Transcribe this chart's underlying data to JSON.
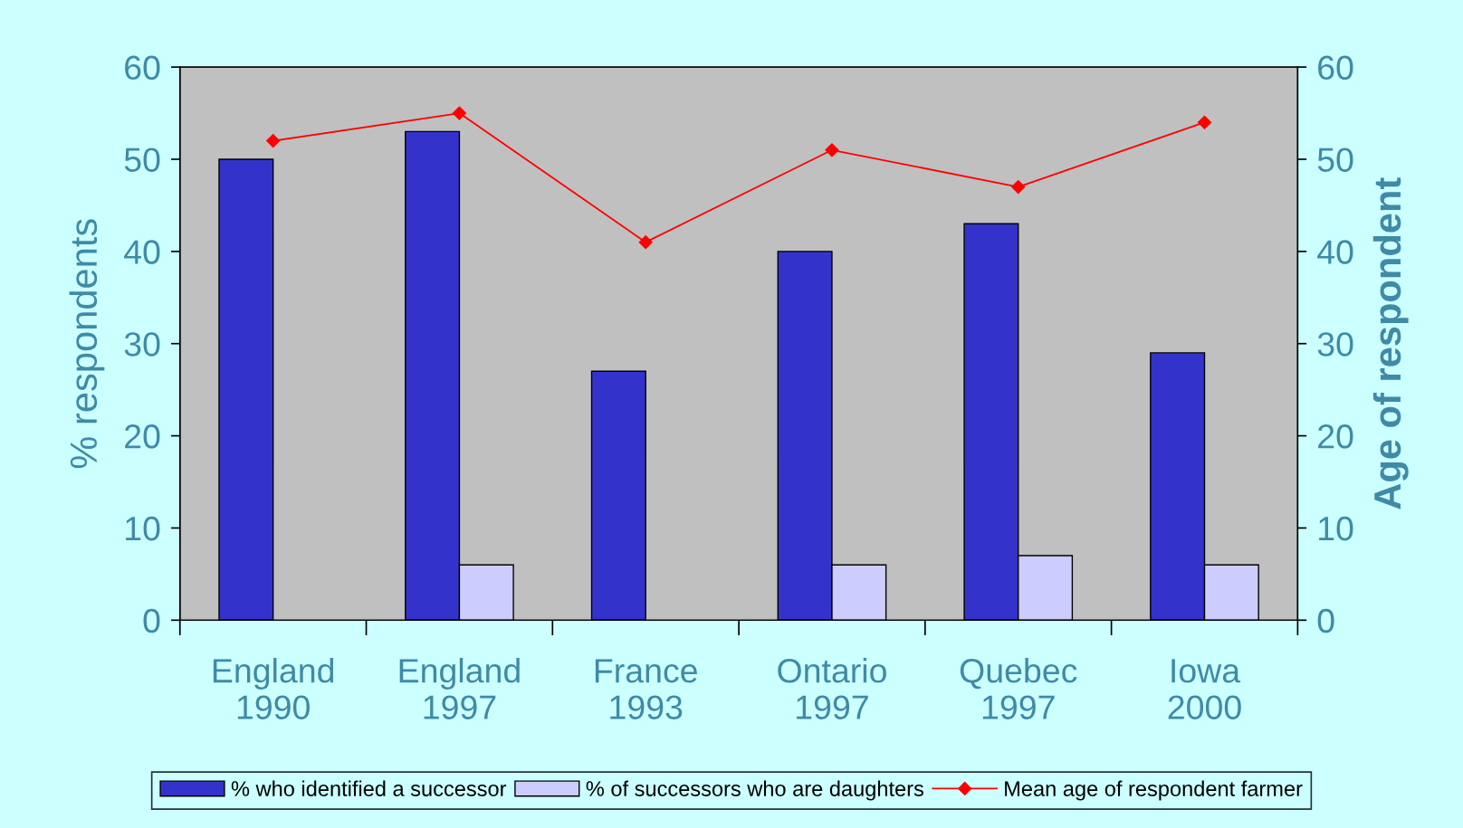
{
  "chart_data": {
    "type": "bar",
    "categories": [
      "England\n1990",
      "England\n1997",
      "France\n1993",
      "Ontario\n1997",
      "Quebec\n1997",
      "Iowa\n2000"
    ],
    "ylabel": "% respondents",
    "y2label": "Age of respondent",
    "ylim": [
      0,
      60
    ],
    "yticks": [
      0,
      10,
      20,
      30,
      40,
      50,
      60
    ],
    "y2lim": [
      0,
      60
    ],
    "y2ticks": [
      0,
      10,
      20,
      30,
      40,
      50,
      60
    ],
    "grid": false,
    "legend": "bottom",
    "series": [
      {
        "name": "% who identified a successor",
        "color": "#3333cc",
        "values": [
          50,
          53,
          27,
          40,
          43,
          29
        ]
      },
      {
        "name": "% of successors who are daughters",
        "color": "#ccccff",
        "values": [
          null,
          6,
          null,
          6,
          7,
          6
        ]
      },
      {
        "name": "Mean age of respondent farmer",
        "type": "line",
        "axis": "y2",
        "color": "#ff0000",
        "marker": "diamond",
        "line_style": "solid",
        "values": [
          52,
          55,
          41,
          51,
          47,
          54
        ]
      }
    ]
  }
}
